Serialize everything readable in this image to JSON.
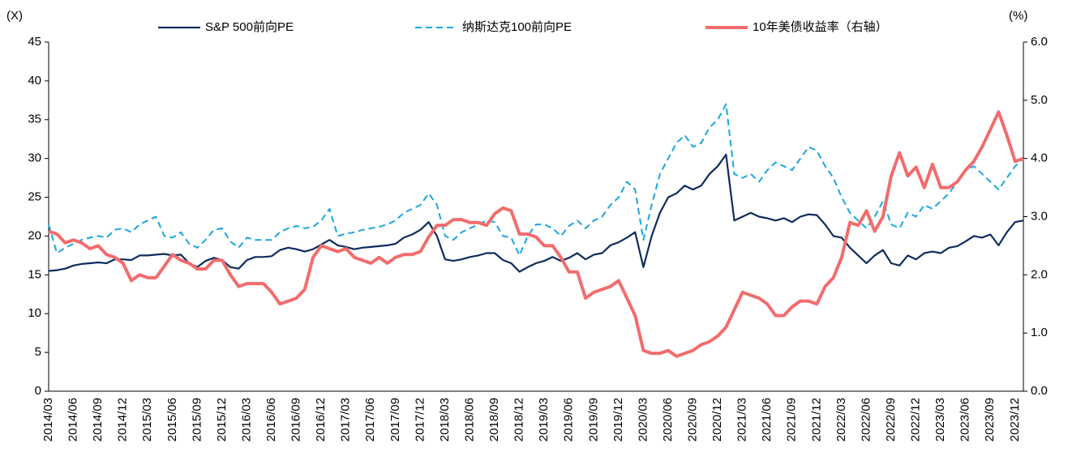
{
  "chart_data": {
    "type": "line",
    "y_label": "(X)",
    "y2_label": "(%)",
    "categories": [
      "2014/03",
      null,
      null,
      "2014/06",
      null,
      null,
      "2014/09",
      null,
      null,
      "2014/12",
      null,
      null,
      "2015/03",
      null,
      null,
      "2015/06",
      null,
      null,
      "2015/09",
      null,
      null,
      "2015/12",
      null,
      null,
      "2016/03",
      null,
      null,
      "2016/06",
      null,
      null,
      "2016/09",
      null,
      null,
      "2016/12",
      null,
      null,
      "2017/03",
      null,
      null,
      "2017/06",
      null,
      null,
      "2017/09",
      null,
      null,
      "2017/12",
      null,
      null,
      "2018/03",
      null,
      null,
      "2018/06",
      null,
      null,
      "2018/09",
      null,
      null,
      "2018/12",
      null,
      null,
      "2019/03",
      null,
      null,
      "2019/06",
      null,
      null,
      "2019/09",
      null,
      null,
      "2019/12",
      null,
      null,
      "2020/03",
      null,
      null,
      "2020/06",
      null,
      null,
      "2020/09",
      null,
      null,
      "2020/12",
      null,
      null,
      "2021/03",
      null,
      null,
      "2021/06",
      null,
      null,
      "2021/09",
      null,
      null,
      "2021/12",
      null,
      null,
      "2022/03",
      null,
      null,
      "2022/06",
      null,
      null,
      "2022/09",
      null,
      null,
      "2022/12",
      null,
      null,
      "2023/03",
      null,
      null,
      "2023/06",
      null,
      null,
      "2023/09",
      null,
      null,
      "2023/12",
      null
    ],
    "series": [
      {
        "name": "S&P 500前向PE",
        "color": "#0d2b5e",
        "width": 2.2,
        "dash": false,
        "values": [
          15.5,
          15.6,
          15.8,
          16.2,
          16.4,
          16.5,
          16.6,
          16.5,
          17.0,
          17.0,
          16.9,
          17.5,
          17.5,
          17.6,
          17.7,
          17.5,
          17.6,
          16.5,
          16.0,
          16.8,
          17.2,
          16.9,
          16.0,
          15.8,
          16.9,
          17.3,
          17.3,
          17.4,
          18.2,
          18.5,
          18.3,
          18.0,
          18.3,
          18.9,
          19.5,
          18.8,
          18.6,
          18.3,
          18.5,
          18.6,
          18.7,
          18.8,
          19.0,
          19.8,
          20.2,
          20.8,
          21.8,
          20.0,
          17.0,
          16.8,
          17.0,
          17.3,
          17.5,
          17.8,
          17.8,
          16.9,
          16.5,
          15.4,
          16.0,
          16.5,
          16.8,
          17.3,
          16.8,
          17.2,
          17.8,
          17.0,
          17.6,
          17.8,
          18.8,
          19.2,
          19.8,
          20.5,
          16.0,
          20.0,
          23.0,
          25.0,
          25.5,
          26.5,
          26.0,
          26.5,
          28.0,
          29.0,
          30.5,
          22.0,
          22.5,
          23.0,
          22.5,
          22.3,
          22.0,
          22.3,
          21.8,
          22.5,
          22.8,
          22.7,
          21.5,
          20.0,
          19.8,
          18.5,
          17.5,
          16.5,
          17.5,
          18.2,
          16.5,
          16.2,
          17.5,
          17.0,
          17.8,
          18.0,
          17.8,
          18.5,
          18.7,
          19.3,
          20.0,
          19.8,
          20.2,
          18.8,
          20.5,
          21.8,
          22.0
        ]
      },
      {
        "name": "纳斯达克100前向PE",
        "color": "#1aa7dc",
        "width": 2,
        "dash": true,
        "values": [
          21.5,
          17.8,
          18.5,
          19.0,
          19.5,
          19.8,
          20.0,
          19.8,
          20.8,
          21.0,
          20.5,
          21.5,
          22.0,
          22.5,
          20.0,
          19.8,
          20.5,
          19.0,
          18.5,
          19.5,
          20.8,
          21.0,
          19.3,
          18.5,
          19.8,
          19.5,
          19.5,
          19.5,
          20.5,
          21.0,
          21.3,
          21.0,
          21.2,
          22.0,
          23.5,
          20.0,
          20.3,
          20.5,
          20.8,
          21.0,
          21.2,
          21.5,
          22.0,
          23.0,
          23.5,
          24.0,
          25.5,
          24.0,
          20.0,
          19.5,
          20.5,
          21.0,
          21.5,
          22.0,
          21.8,
          20.0,
          19.8,
          17.5,
          20.0,
          21.5,
          21.5,
          21.0,
          20.0,
          21.3,
          22.0,
          21.0,
          22.0,
          22.5,
          24.0,
          25.0,
          27.0,
          26.0,
          19.5,
          24.0,
          28.0,
          30.0,
          32.0,
          33.0,
          31.5,
          32.0,
          34.0,
          35.0,
          37.0,
          28.0,
          27.5,
          28.0,
          27.0,
          28.5,
          29.5,
          29.0,
          28.5,
          30.0,
          31.5,
          31.0,
          29.0,
          27.5,
          25.0,
          23.0,
          22.0,
          21.0,
          22.5,
          24.5,
          21.5,
          21.0,
          23.0,
          22.5,
          24.0,
          23.5,
          24.5,
          25.5,
          27.0,
          28.5,
          29.0,
          28.0,
          27.0,
          26.0,
          27.5,
          29.0,
          30.0
        ]
      },
      {
        "name": "10年美债收益率（右轴）",
        "color": "#f26c6c",
        "width": 4,
        "dash": false,
        "axis": "y2",
        "values": [
          2.75,
          2.7,
          2.55,
          2.6,
          2.55,
          2.45,
          2.5,
          2.35,
          2.3,
          2.2,
          1.9,
          2.0,
          1.95,
          1.95,
          2.15,
          2.35,
          2.25,
          2.2,
          2.1,
          2.1,
          2.25,
          2.25,
          2.0,
          1.8,
          1.85,
          1.85,
          1.85,
          1.7,
          1.5,
          1.55,
          1.6,
          1.75,
          2.3,
          2.5,
          2.45,
          2.4,
          2.45,
          2.3,
          2.25,
          2.2,
          2.3,
          2.2,
          2.3,
          2.35,
          2.35,
          2.4,
          2.65,
          2.85,
          2.85,
          2.95,
          2.95,
          2.9,
          2.9,
          2.85,
          3.05,
          3.15,
          3.1,
          2.7,
          2.7,
          2.65,
          2.5,
          2.5,
          2.3,
          2.05,
          2.05,
          1.6,
          1.7,
          1.75,
          1.8,
          1.9,
          1.6,
          1.3,
          0.7,
          0.65,
          0.65,
          0.7,
          0.6,
          0.65,
          0.7,
          0.8,
          0.85,
          0.95,
          1.1,
          1.4,
          1.7,
          1.65,
          1.6,
          1.5,
          1.3,
          1.3,
          1.45,
          1.55,
          1.55,
          1.5,
          1.8,
          1.95,
          2.3,
          2.9,
          2.85,
          3.1,
          2.75,
          3.0,
          3.7,
          4.1,
          3.7,
          3.85,
          3.5,
          3.9,
          3.5,
          3.5,
          3.6,
          3.8,
          3.95,
          4.2,
          4.5,
          4.8,
          4.4,
          3.95,
          4.0
        ]
      }
    ],
    "ylim": [
      0,
      45
    ],
    "yticks": [
      0,
      5,
      10,
      15,
      20,
      25,
      30,
      35,
      40,
      45
    ],
    "y2lim": [
      0,
      6
    ],
    "y2ticks": [
      {
        "value": 0,
        "label": "0.0"
      },
      {
        "value": 1,
        "label": "1.0"
      },
      {
        "value": 2,
        "label": "2.0"
      },
      {
        "value": 3,
        "label": "3.0"
      },
      {
        "value": 4,
        "label": "4.0"
      },
      {
        "value": 5,
        "label": "5.0"
      },
      {
        "value": 6,
        "label": "6.0"
      }
    ],
    "grid": false,
    "legend": "top"
  }
}
